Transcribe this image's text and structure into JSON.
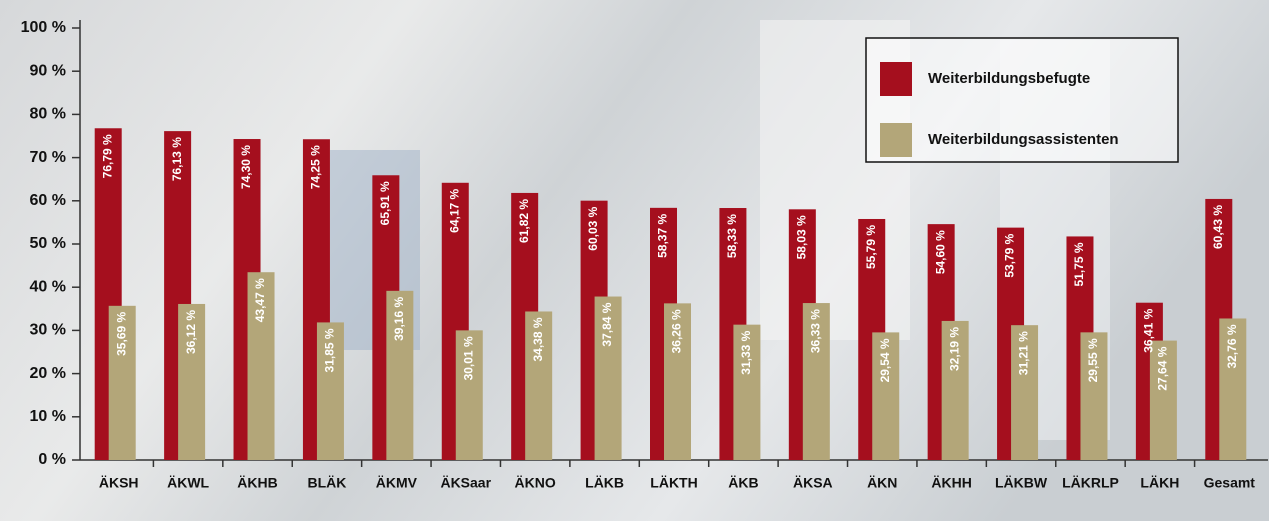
{
  "chart_data": {
    "type": "bar",
    "categories": [
      "ÄKSH",
      "ÄKWL",
      "ÄKHB",
      "BLÄK",
      "ÄKMV",
      "ÄKSaar",
      "ÄKNO",
      "LÄKB",
      "LÄKTH",
      "ÄKB",
      "ÄKSA",
      "ÄKN",
      "ÄKHH",
      "LÄKBW",
      "LÄKRLP",
      "LÄKH",
      "Gesamt"
    ],
    "series": [
      {
        "name": "Weiterbildungsbefugte",
        "color": "#a50f1e",
        "values": [
          76.79,
          76.13,
          74.3,
          74.25,
          65.91,
          64.17,
          61.82,
          60.03,
          58.37,
          58.33,
          58.03,
          55.79,
          54.6,
          53.79,
          51.75,
          36.41,
          60.43
        ],
        "value_labels": [
          "76,79 %",
          "76,13 %",
          "74,30 %",
          "74,25 %",
          "65,91 %",
          "64,17 %",
          "61,82 %",
          "60,03 %",
          "58,37 %",
          "58,33 %",
          "58,03 %",
          "55,79 %",
          "54,60 %",
          "53,79 %",
          "51,75 %",
          "36,41 %",
          "60,43 %"
        ]
      },
      {
        "name": "Weiterbildungsassistenten",
        "color": "#b3a679",
        "values": [
          35.69,
          36.12,
          43.47,
          31.85,
          39.16,
          30.01,
          34.38,
          37.84,
          36.26,
          31.33,
          36.33,
          29.54,
          32.19,
          31.21,
          29.55,
          27.64,
          32.76
        ],
        "value_labels": [
          "35,69 %",
          "36,12 %",
          "43,47 %",
          "31,85 %",
          "39,16 %",
          "30,01 %",
          "34,38 %",
          "37,84 %",
          "36,26 %",
          "31,33 %",
          "36,33 %",
          "29,54 %",
          "32,19 %",
          "31,21 %",
          "29,55 %",
          "27,64 %",
          "32,76 %"
        ]
      }
    ],
    "ylim": [
      0,
      100
    ],
    "yticks": [
      {
        "value": 0,
        "label": "0 %"
      },
      {
        "value": 10,
        "label": "10 %"
      },
      {
        "value": 20,
        "label": "20 %"
      },
      {
        "value": 30,
        "label": "30 %"
      },
      {
        "value": 40,
        "label": "40 %"
      },
      {
        "value": 50,
        "label": "50 %"
      },
      {
        "value": 60,
        "label": "60 %"
      },
      {
        "value": 70,
        "label": "70 %"
      },
      {
        "value": 80,
        "label": "80 %"
      },
      {
        "value": 90,
        "label": "90 %"
      },
      {
        "value": 100,
        "label": "100 %"
      }
    ],
    "legend": "upper right"
  }
}
